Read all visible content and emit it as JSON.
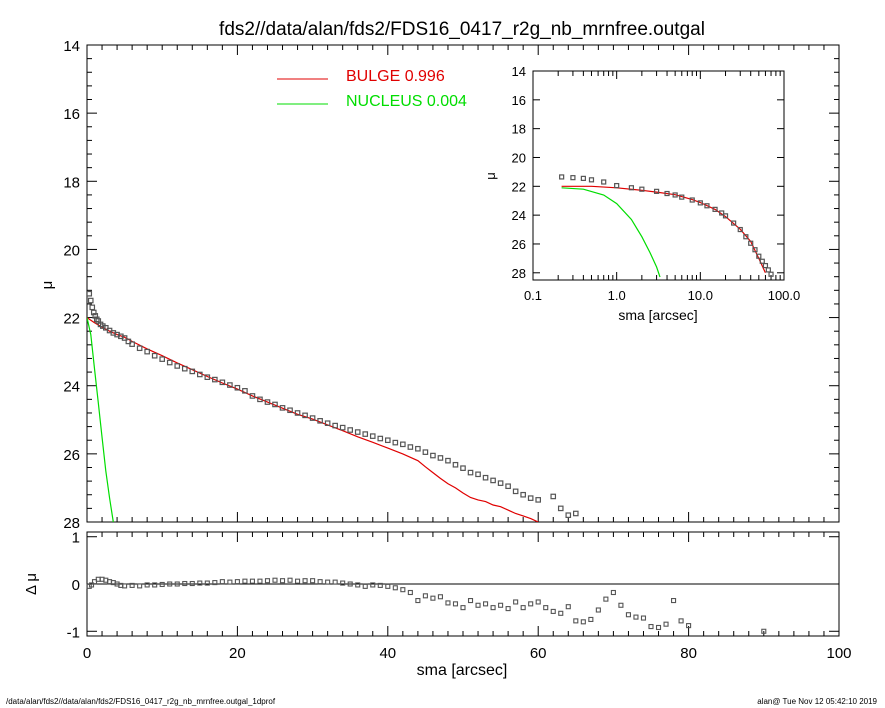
{
  "chart_data": {
    "title": "fds2//data/alan/fds2/FDS16_0417_r2g_nb_mrnfree.outgal",
    "footer_left": "/data/alan/fds2//data/alan/fds2/FDS16_0417_r2g_nb_mrnfree.outgal_1dprof",
    "footer_right": "alan@  Tue Nov 12 05:42:10 2019",
    "colors": {
      "bulge": "#e00000",
      "nucleus": "#00dd00",
      "data": "#555555"
    },
    "main": {
      "type": "line",
      "xlim": [
        0,
        100
      ],
      "ylim": [
        28,
        14
      ],
      "ylabel": "μ",
      "yticks": [
        "14",
        "16",
        "18",
        "20",
        "22",
        "24",
        "26",
        "28"
      ],
      "legend": [
        {
          "label": "BULGE  0.996",
          "color": "#e00000"
        },
        {
          "label": "NUCLEUS  0.004",
          "color": "#00dd00"
        }
      ],
      "data_points": {
        "x": [
          0.3,
          0.5,
          0.7,
          0.9,
          1.1,
          1.3,
          1.5,
          1.8,
          2.1,
          2.5,
          3,
          3.5,
          4,
          4.5,
          5,
          5.5,
          6,
          7,
          8,
          9,
          10,
          11,
          12,
          13,
          14,
          15,
          16,
          17,
          18,
          19,
          20,
          21,
          22,
          23,
          24,
          25,
          26,
          27,
          28,
          29,
          30,
          31,
          32,
          33,
          34,
          35,
          36,
          37,
          38,
          39,
          40,
          41,
          42,
          43,
          44,
          45,
          46,
          47,
          48,
          49,
          50,
          51,
          52,
          53,
          54,
          55,
          56,
          57,
          58,
          59,
          60,
          62,
          63,
          64,
          65
        ],
        "y": [
          21.3,
          21.5,
          21.7,
          21.85,
          21.95,
          22.05,
          22.1,
          22.2,
          22.25,
          22.3,
          22.38,
          22.45,
          22.5,
          22.55,
          22.6,
          22.7,
          22.78,
          22.9,
          23.0,
          23.12,
          23.22,
          23.32,
          23.42,
          23.5,
          23.58,
          23.67,
          23.75,
          23.82,
          23.9,
          23.98,
          24.06,
          24.15,
          24.3,
          24.4,
          24.48,
          24.55,
          24.65,
          24.72,
          24.8,
          24.87,
          24.95,
          25.03,
          25.1,
          25.17,
          25.23,
          25.3,
          25.36,
          25.42,
          25.48,
          25.55,
          25.6,
          25.67,
          25.72,
          25.8,
          25.85,
          25.95,
          26.05,
          26.12,
          26.2,
          26.32,
          26.42,
          26.55,
          26.6,
          26.7,
          26.78,
          26.86,
          26.95,
          27.1,
          27.2,
          27.3,
          27.35,
          27.25,
          27.6,
          27.8,
          27.75
        ]
      },
      "bulge": {
        "x": [
          0,
          1,
          2,
          3,
          4,
          5,
          6,
          8,
          10,
          12,
          14,
          16,
          18,
          20,
          22,
          24,
          26,
          28,
          30,
          32,
          34,
          36,
          38,
          40,
          42,
          44,
          45,
          46,
          47,
          48,
          49,
          50,
          51,
          52,
          53,
          54,
          55,
          56,
          57,
          58,
          59,
          60
        ],
        "y": [
          22.0,
          22.15,
          22.28,
          22.4,
          22.5,
          22.58,
          22.7,
          22.92,
          23.12,
          23.33,
          23.53,
          23.73,
          23.92,
          24.1,
          24.3,
          24.48,
          24.66,
          24.84,
          24.98,
          25.15,
          25.32,
          25.5,
          25.66,
          25.83,
          26.0,
          26.2,
          26.38,
          26.55,
          26.72,
          26.88,
          27.0,
          27.15,
          27.28,
          27.35,
          27.4,
          27.5,
          27.55,
          27.65,
          27.75,
          27.82,
          27.9,
          28.0
        ]
      },
      "nucleus": {
        "x": [
          0,
          0.5,
          1,
          1.5,
          2,
          2.5,
          3,
          3.5
        ],
        "y": [
          22.0,
          22.5,
          23.5,
          24.5,
          25.5,
          26.5,
          27.3,
          28.0
        ]
      }
    },
    "residual": {
      "type": "scatter",
      "xlim": [
        0,
        100
      ],
      "ylim": [
        -1.1,
        1.1
      ],
      "xlabel": "sma [arcsec]",
      "ylabel": "Δ μ",
      "xticks": [
        "0",
        "20",
        "40",
        "60",
        "80",
        "100"
      ],
      "yticks": [
        "1",
        "0",
        "-1"
      ],
      "points": {
        "x": [
          0.3,
          0.6,
          1,
          1.5,
          2,
          2.5,
          3,
          3.5,
          4,
          4.5,
          5,
          6,
          7,
          8,
          9,
          10,
          11,
          12,
          13,
          14,
          15,
          16,
          17,
          18,
          19,
          20,
          21,
          22,
          23,
          24,
          25,
          26,
          27,
          28,
          29,
          30,
          31,
          32,
          33,
          34,
          35,
          36,
          37,
          38,
          39,
          40,
          41,
          42,
          43,
          44,
          45,
          46,
          47,
          48,
          49,
          50,
          51,
          52,
          53,
          54,
          55,
          56,
          57,
          58,
          59,
          60,
          61,
          62,
          63,
          64,
          65,
          66,
          67,
          68,
          69,
          70,
          71,
          72,
          73,
          74,
          75,
          76,
          77,
          78,
          79,
          80,
          90
        ],
        "y": [
          -0.05,
          -0.02,
          0.05,
          0.1,
          0.1,
          0.08,
          0.05,
          0.03,
          0.0,
          -0.03,
          -0.04,
          -0.03,
          -0.04,
          -0.02,
          -0.02,
          -0.01,
          0.0,
          0.0,
          0.01,
          0.01,
          0.02,
          0.02,
          0.03,
          0.05,
          0.04,
          0.05,
          0.06,
          0.06,
          0.06,
          0.07,
          0.08,
          0.07,
          0.08,
          0.06,
          0.07,
          0.07,
          0.05,
          0.04,
          0.04,
          0.02,
          0.0,
          -0.02,
          -0.05,
          -0.02,
          -0.03,
          -0.05,
          -0.08,
          -0.12,
          -0.18,
          -0.35,
          -0.25,
          -0.3,
          -0.27,
          -0.4,
          -0.42,
          -0.5,
          -0.35,
          -0.45,
          -0.42,
          -0.5,
          -0.45,
          -0.52,
          -0.38,
          -0.5,
          -0.42,
          -0.38,
          -0.5,
          -0.58,
          -0.62,
          -0.48,
          -0.78,
          -0.8,
          -0.75,
          -0.55,
          -0.32,
          -0.18,
          -0.45,
          -0.65,
          -0.7,
          -0.72,
          -0.9,
          -0.92,
          -0.85,
          -0.35,
          -0.78,
          -0.88,
          -1.0
        ]
      }
    },
    "inset": {
      "type": "line",
      "xscale": "log",
      "xlim": [
        0.1,
        100
      ],
      "ylim": [
        28.5,
        14
      ],
      "xlabel": "sma [arcsec]",
      "ylabel": "μ",
      "xticks": [
        "0.1",
        "1.0",
        "10.0",
        "100.0"
      ],
      "yticks": [
        "14",
        "16",
        "18",
        "20",
        "22",
        "24",
        "26",
        "28"
      ],
      "data_points": {
        "x": [
          0.22,
          0.3,
          0.4,
          0.5,
          0.7,
          1,
          1.5,
          2,
          3,
          4,
          5,
          6,
          8,
          10,
          12,
          15,
          18,
          20,
          25,
          30,
          35,
          40,
          45,
          50,
          55,
          60,
          65,
          70
        ],
        "y": [
          21.35,
          21.4,
          21.45,
          21.55,
          21.7,
          21.95,
          22.1,
          22.2,
          22.35,
          22.5,
          22.6,
          22.75,
          22.95,
          23.15,
          23.35,
          23.6,
          23.85,
          24.05,
          24.55,
          25.0,
          25.5,
          25.95,
          26.4,
          26.85,
          27.2,
          27.5,
          27.8,
          28.1
        ]
      },
      "bulge": {
        "x": [
          0.22,
          0.5,
          1,
          2,
          3,
          5,
          8,
          10,
          15,
          20,
          30,
          40,
          50,
          60
        ],
        "y": [
          22.0,
          22.0,
          22.1,
          22.28,
          22.4,
          22.58,
          22.92,
          23.12,
          23.6,
          24.1,
          24.98,
          25.83,
          27.0,
          28.0
        ]
      },
      "nucleus": {
        "x": [
          0.22,
          0.4,
          0.7,
          1,
          1.5,
          2,
          2.5,
          3,
          3.3
        ],
        "y": [
          22.1,
          22.2,
          22.6,
          23.2,
          24.3,
          25.5,
          26.6,
          27.6,
          28.3
        ]
      }
    }
  }
}
